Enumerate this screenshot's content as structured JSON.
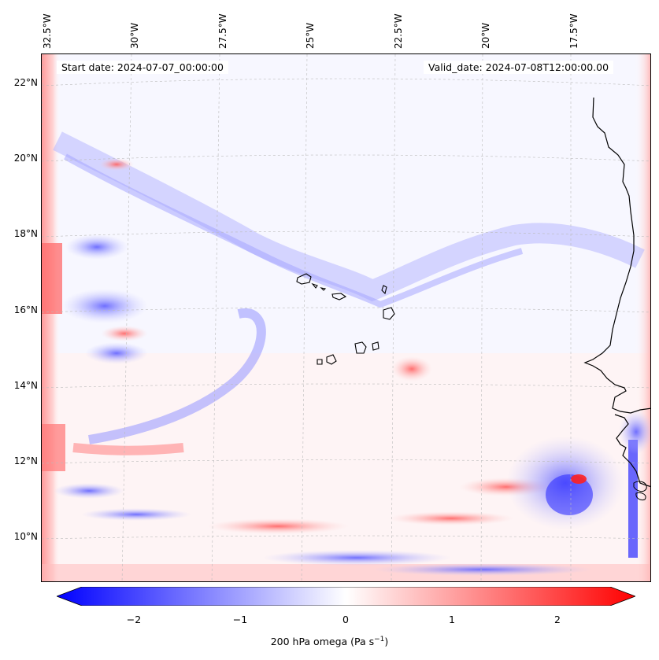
{
  "map": {
    "start_date": "Start date: 2024-07-07_00:00:00",
    "valid_date": "Valid_date: 2024-07-08T12:00:00.00",
    "lon_labels": [
      "32.5°W",
      "30°W",
      "27.5°W",
      "25°W",
      "22.5°W",
      "20°W",
      "17.5°W"
    ],
    "lat_labels": [
      "22°N",
      "20°N",
      "18°N",
      "16°N",
      "14°N",
      "12°N",
      "10°N"
    ],
    "colors": {
      "negative": "#0000ff",
      "neutral": "#ffffff",
      "positive": "#ff0000",
      "coast": "#000000"
    }
  },
  "colorbar": {
    "ticks": [
      "−2",
      "−1",
      "0",
      "1",
      "2"
    ],
    "label": "200 hPa omega (Pa s",
    "label_sup": "−1",
    "label_end": ")",
    "range": [
      -2.75,
      2.75
    ]
  }
}
